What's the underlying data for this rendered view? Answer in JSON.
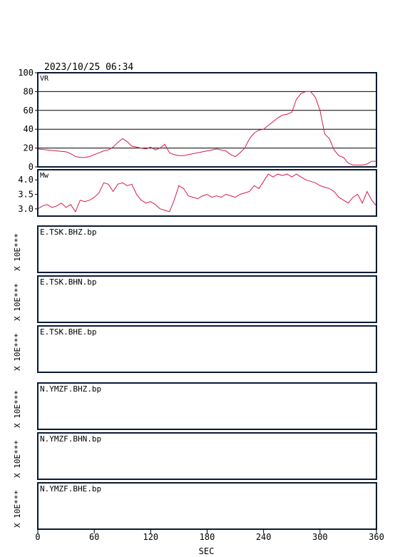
{
  "header": {
    "timestamp": "2023/10/25 06:34"
  },
  "colors": {
    "series": "#d81b48",
    "frame": "#0b1a33",
    "grid": "#000000"
  },
  "chart_data": [
    {
      "type": "line",
      "label": "VR",
      "ylim": [
        0,
        100
      ],
      "yticks": [
        0,
        20,
        40,
        60,
        80,
        100
      ],
      "grid": true,
      "x": [
        0,
        10,
        20,
        30,
        35,
        40,
        45,
        50,
        55,
        60,
        65,
        70,
        75,
        80,
        85,
        90,
        95,
        100,
        105,
        110,
        115,
        120,
        125,
        130,
        135,
        140,
        145,
        150,
        155,
        160,
        165,
        170,
        175,
        180,
        185,
        190,
        195,
        200,
        205,
        210,
        215,
        220,
        225,
        230,
        235,
        240,
        245,
        250,
        255,
        260,
        265,
        270,
        275,
        280,
        285,
        290,
        295,
        300,
        305,
        310,
        315,
        320,
        325,
        330,
        335,
        340,
        345,
        350,
        355,
        360
      ],
      "values": [
        19,
        18,
        17,
        16,
        14,
        11,
        10,
        10,
        11,
        13,
        15,
        17,
        18,
        21,
        26,
        30,
        27,
        22,
        21,
        20,
        19,
        21,
        18,
        20,
        24,
        15,
        13,
        12,
        12,
        13,
        14,
        15,
        16,
        17,
        18,
        19,
        18,
        17,
        13,
        11,
        15,
        20,
        30,
        36,
        39,
        40,
        44,
        48,
        52,
        55,
        56,
        58,
        72,
        78,
        80,
        80,
        74,
        60,
        35,
        30,
        18,
        12,
        10,
        4,
        2,
        2,
        2,
        3,
        6,
        6
      ]
    },
    {
      "type": "line",
      "label": "Mw",
      "ylim": [
        2.75,
        4.35
      ],
      "yticks": [
        3.0,
        3.5,
        4.0
      ],
      "grid": false,
      "x": [
        0,
        5,
        10,
        15,
        20,
        25,
        30,
        35,
        40,
        45,
        50,
        55,
        60,
        65,
        70,
        75,
        80,
        85,
        90,
        95,
        100,
        105,
        110,
        115,
        120,
        125,
        130,
        135,
        140,
        145,
        150,
        155,
        160,
        165,
        170,
        175,
        180,
        185,
        190,
        195,
        200,
        205,
        210,
        215,
        220,
        225,
        230,
        235,
        240,
        245,
        250,
        255,
        260,
        265,
        270,
        275,
        280,
        285,
        290,
        295,
        300,
        305,
        310,
        315,
        320,
        325,
        330,
        335,
        340,
        345,
        350,
        355,
        360
      ],
      "values": [
        3.0,
        3.1,
        3.15,
        3.05,
        3.1,
        3.2,
        3.05,
        3.15,
        2.9,
        3.3,
        3.25,
        3.3,
        3.4,
        3.55,
        3.9,
        3.85,
        3.6,
        3.85,
        3.9,
        3.8,
        3.85,
        3.5,
        3.3,
        3.2,
        3.25,
        3.15,
        3.0,
        2.95,
        2.9,
        3.3,
        3.8,
        3.7,
        3.45,
        3.4,
        3.35,
        3.45,
        3.5,
        3.4,
        3.45,
        3.4,
        3.5,
        3.45,
        3.4,
        3.5,
        3.55,
        3.6,
        3.8,
        3.7,
        3.95,
        4.2,
        4.1,
        4.2,
        4.15,
        4.2,
        4.1,
        4.2,
        4.1,
        4.0,
        3.95,
        3.9,
        3.8,
        3.75,
        3.7,
        3.6,
        3.4,
        3.3,
        3.2,
        3.4,
        3.5,
        3.2,
        3.6,
        3.3,
        3.1
      ]
    }
  ],
  "waveform_panels": [
    {
      "station": "E.TSK.BHZ.bp",
      "scale_label": "X 10E***"
    },
    {
      "station": "E.TSK.BHN.bp",
      "scale_label": "X 10E***"
    },
    {
      "station": "E.TSK.BHE.bp",
      "scale_label": "X 10E***"
    },
    {
      "station": "N.YMZF.BHZ.bp",
      "scale_label": "X 10E***"
    },
    {
      "station": "N.YMZF.BHN.bp",
      "scale_label": "X 10E***"
    },
    {
      "station": "N.YMZF.BHE.bp",
      "scale_label": "X 10E***"
    }
  ],
  "x_axis": {
    "label": "SEC",
    "xlim": [
      0,
      360
    ],
    "ticks": [
      0,
      60,
      120,
      180,
      240,
      300,
      360
    ]
  }
}
